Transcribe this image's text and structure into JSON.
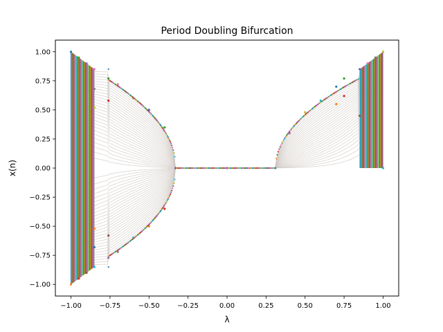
{
  "chart_data": {
    "type": "scatter",
    "title": "Period Doubling Bifurcation",
    "xlabel": "λ",
    "ylabel": "x(n)",
    "xlim": [
      -1.1,
      1.1
    ],
    "ylim": [
      -1.1,
      1.1
    ],
    "xticks": [
      "−1.00",
      "−0.75",
      "−0.50",
      "−0.25",
      "0.00",
      "0.25",
      "0.50",
      "0.75",
      "1.00"
    ],
    "xtick_values": [
      -1.0,
      -0.75,
      -0.5,
      -0.25,
      0.0,
      0.25,
      0.5,
      0.75,
      1.0
    ],
    "yticks": [
      "−1.00",
      "−0.75",
      "−0.50",
      "−0.25",
      "0.00",
      "0.25",
      "0.50",
      "0.75",
      "1.00"
    ],
    "ytick_values": [
      -1.0,
      -0.75,
      -0.5,
      -0.25,
      0.0,
      0.25,
      0.5,
      0.75,
      1.0
    ],
    "grid": false,
    "legend": "none",
    "series": [
      {
        "values": [
          {
            "x": -1.0,
            "y": 1.0
          },
          {
            "x": -1.0,
            "y": -1.0
          },
          {
            "x": -0.95,
            "y": 0.95
          },
          {
            "x": -0.95,
            "y": -0.95
          },
          {
            "x": -0.9,
            "y": 0.9
          },
          {
            "x": -0.9,
            "y": -0.9
          },
          {
            "x": -0.85,
            "y": 0.85
          },
          {
            "x": -0.85,
            "y": 0.68
          },
          {
            "x": -0.85,
            "y": 0.52
          },
          {
            "x": -0.85,
            "y": -0.85
          },
          {
            "x": -0.85,
            "y": -0.68
          },
          {
            "x": -0.85,
            "y": -0.52
          },
          {
            "x": -0.76,
            "y": 0.77
          },
          {
            "x": -0.76,
            "y": 0.58
          },
          {
            "x": -0.76,
            "y": -0.77
          },
          {
            "x": -0.76,
            "y": -0.58
          },
          {
            "x": -0.7,
            "y": 0.72
          },
          {
            "x": -0.7,
            "y": -0.72
          },
          {
            "x": -0.6,
            "y": 0.6
          },
          {
            "x": -0.6,
            "y": -0.6
          },
          {
            "x": -0.5,
            "y": 0.5
          },
          {
            "x": -0.5,
            "y": -0.5
          },
          {
            "x": -0.4,
            "y": 0.35
          },
          {
            "x": -0.4,
            "y": -0.35
          },
          {
            "x": -0.33,
            "y": 0.0
          },
          {
            "x": 0.0,
            "y": 0.0
          },
          {
            "x": 0.31,
            "y": 0.0
          },
          {
            "x": 0.4,
            "y": 0.3
          },
          {
            "x": 0.5,
            "y": 0.48
          },
          {
            "x": 0.6,
            "y": 0.58
          },
          {
            "x": 0.7,
            "y": 0.7
          },
          {
            "x": 0.7,
            "y": 0.55
          },
          {
            "x": 0.75,
            "y": 0.77
          },
          {
            "x": 0.75,
            "y": 0.62
          },
          {
            "x": 0.85,
            "y": 0.85
          },
          {
            "x": 0.85,
            "y": 0.45
          },
          {
            "x": 0.9,
            "y": 0.9
          },
          {
            "x": 0.95,
            "y": 0.95
          },
          {
            "x": 1.0,
            "y": 1.0
          },
          {
            "x": 1.0,
            "y": 0.0
          }
        ]
      }
    ],
    "colors": [
      "#1f77b4",
      "#ff7f0e",
      "#2ca02c",
      "#d62728",
      "#9467bd",
      "#8c564b",
      "#e377c2",
      "#7f7f7f",
      "#bcbd22",
      "#17becf"
    ],
    "transient_color": "#cfc8c2"
  }
}
